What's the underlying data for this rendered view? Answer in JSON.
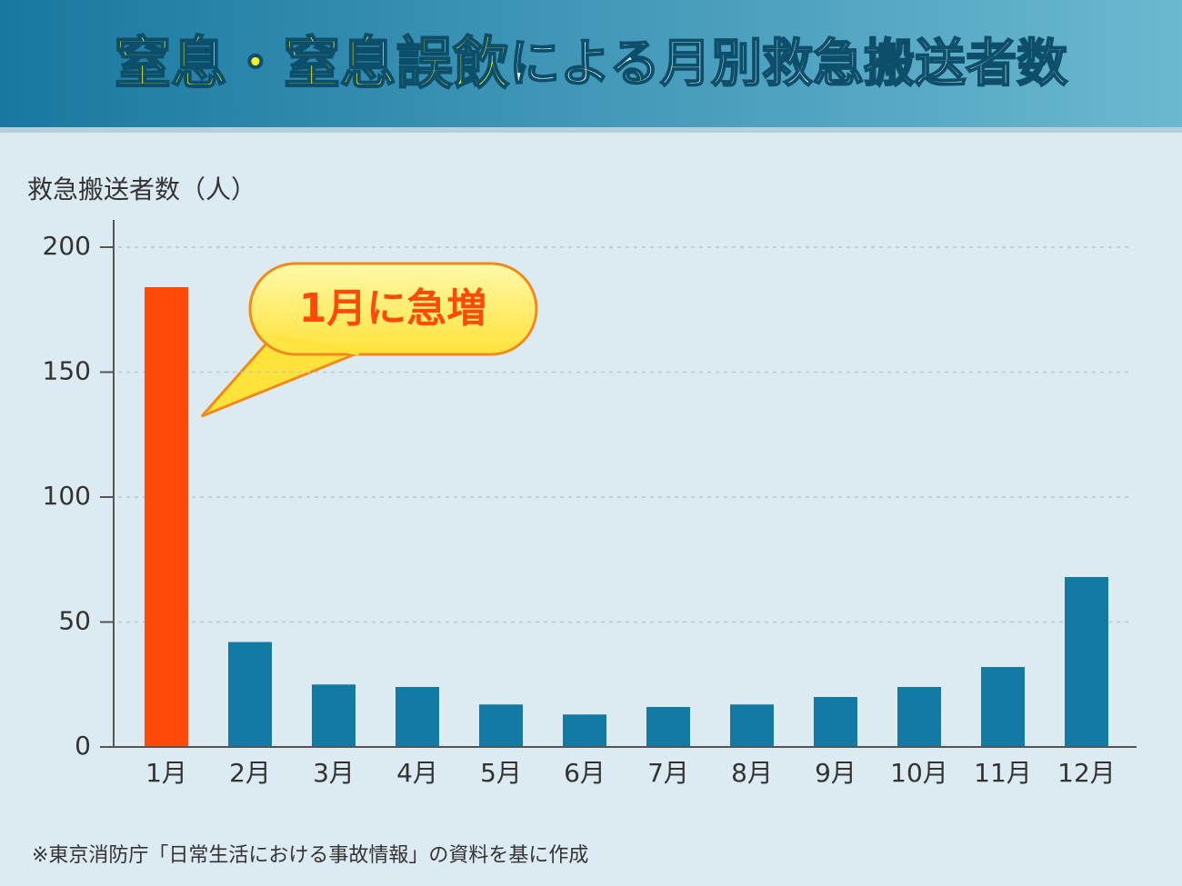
{
  "chart_data": {
    "type": "bar",
    "title": {
      "highlight": "窒息・窒息誤飲",
      "rest": "による月別救急搬送者数"
    },
    "y_label": "救急搬送者数（人）",
    "annotation": "1月に急増",
    "footnote": "※東京消防庁「日常生活における事故情報」の資料を基に作成",
    "categories": [
      "1月",
      "2月",
      "3月",
      "4月",
      "5月",
      "6月",
      "7月",
      "8月",
      "9月",
      "10月",
      "11月",
      "12月"
    ],
    "values": [
      184,
      42,
      25,
      24,
      17,
      13,
      16,
      17,
      20,
      24,
      32,
      68
    ],
    "colors": [
      "#ff4a0a",
      "#137ba3",
      "#137ba3",
      "#137ba3",
      "#137ba3",
      "#137ba3",
      "#137ba3",
      "#137ba3",
      "#137ba3",
      "#137ba3",
      "#137ba3",
      "#137ba3"
    ],
    "ylim": [
      0,
      200
    ],
    "yticks": [
      0,
      50,
      100,
      150,
      200
    ],
    "grid": true
  }
}
